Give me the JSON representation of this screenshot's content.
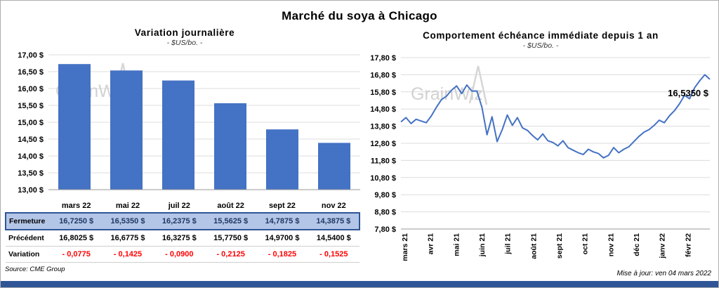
{
  "page_title": "Marché du soya à Chicago",
  "source": "Source: CME Group",
  "updated": "Mise à jour: ven 04 mars 2022",
  "colors": {
    "series_blue": "#4472C4",
    "highlight_row_bg": "#B4C6E7",
    "highlight_row_text": "#1F3864",
    "negative_red": "#FF0000",
    "bottom_bar_blue": "#2F5597"
  },
  "table": {
    "rows": [
      {
        "label": "Fermeture",
        "values": [
          "16,7250  $",
          "16,5350  $",
          "16,2375  $",
          "15,5625  $",
          "14,7875  $",
          "14,3875  $"
        ]
      },
      {
        "label": "Précédent",
        "values": [
          "16,8025  $",
          "16,6775  $",
          "16,3275  $",
          "15,7750  $",
          "14,9700  $",
          "14,5400  $"
        ]
      },
      {
        "label": "Variation",
        "values": [
          "- 0,0775",
          "- 0,1425",
          "- 0,0900",
          "- 0,2125",
          "- 0,1825",
          "- 0,1525"
        ]
      }
    ]
  },
  "chart_data": [
    {
      "type": "bar",
      "title": "Variation journalière",
      "subtitle": "- $US/bo. -",
      "categories": [
        "mars 22",
        "mai 22",
        "juil 22",
        "août 22",
        "sept 22",
        "nov 22"
      ],
      "values": [
        16.725,
        16.535,
        16.2375,
        15.5625,
        14.7875,
        14.3875
      ],
      "ylim": [
        13.0,
        17.0
      ],
      "ytick_step": 0.5,
      "bar_color": "#4472C4",
      "grid": true,
      "watermark": "GrainWiz"
    },
    {
      "type": "line",
      "title": "Comportement échéance immédiate depuis 1 an",
      "subtitle": "- $US/bo. -",
      "x_labels": [
        "mars 21",
        "avr 21",
        "mai 21",
        "juin 21",
        "juil 21",
        "août 21",
        "sept 21",
        "oct 21",
        "nov 21",
        "déc 21",
        "janv 22",
        "févr 22"
      ],
      "values": [
        14.05,
        14.3,
        13.95,
        14.2,
        14.1,
        14.0,
        14.4,
        14.9,
        15.35,
        15.55,
        15.9,
        16.15,
        15.7,
        16.2,
        15.85,
        15.85,
        14.9,
        13.3,
        14.35,
        12.9,
        13.6,
        14.45,
        13.85,
        14.3,
        13.7,
        13.55,
        13.25,
        13.0,
        13.35,
        12.95,
        12.85,
        12.65,
        12.95,
        12.55,
        12.4,
        12.25,
        12.15,
        12.45,
        12.3,
        12.2,
        11.95,
        12.1,
        12.55,
        12.25,
        12.45,
        12.6,
        12.9,
        13.2,
        13.45,
        13.6,
        13.85,
        14.15,
        14.0,
        14.4,
        14.7,
        15.1,
        15.6,
        15.4,
        16.05,
        16.45,
        16.8,
        16.535
      ],
      "ylim": [
        7.8,
        17.8
      ],
      "ytick_step": 1.0,
      "line_color": "#4472C4",
      "grid": true,
      "annotation": "16,5350 $",
      "annotation_y": 15.55,
      "watermark": "GrainWiz"
    }
  ]
}
